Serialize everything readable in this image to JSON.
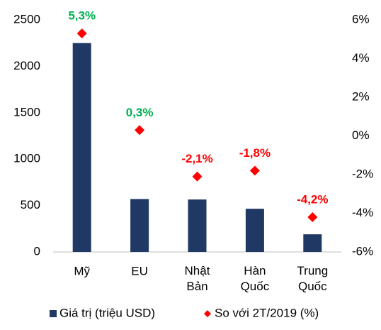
{
  "chart_data": {
    "type": "bar+scatter",
    "categories": [
      "Mỹ",
      "EU",
      "Nhật Bản",
      "Hàn Quốc",
      "Trung Quốc"
    ],
    "series": [
      {
        "name": "Giá trị (triệu USD)",
        "color": "#1f3864",
        "values": [
          2250,
          570,
          565,
          465,
          190
        ]
      },
      {
        "name": "So với 2T/2019 (%)",
        "color": "#ff0000",
        "axis": "y2",
        "values": [
          5.3,
          0.3,
          -2.1,
          -1.8,
          -4.2
        ],
        "value_labels": [
          "5,3%",
          "0,3%",
          "-2,1%",
          "-1,8%",
          "-4,2%"
        ],
        "value_label_colors": [
          "#00b050",
          "#00b050",
          "#ff0000",
          "#ff0000",
          "#ff0000"
        ]
      }
    ],
    "ylim": [
      0,
      2500
    ],
    "yticks": [
      0,
      500,
      1000,
      1500,
      2000,
      2500
    ],
    "y2lim": [
      -6,
      6
    ],
    "y2ticks": [
      {
        "value": -6,
        "label": "-6%"
      },
      {
        "value": -4,
        "label": "-4%"
      },
      {
        "value": -2,
        "label": "-2%"
      },
      {
        "value": 0,
        "label": "0%"
      },
      {
        "value": 2,
        "label": "2%"
      },
      {
        "value": 4,
        "label": "4%"
      },
      {
        "value": 6,
        "label": "6%"
      }
    ],
    "legend": "bottom"
  }
}
